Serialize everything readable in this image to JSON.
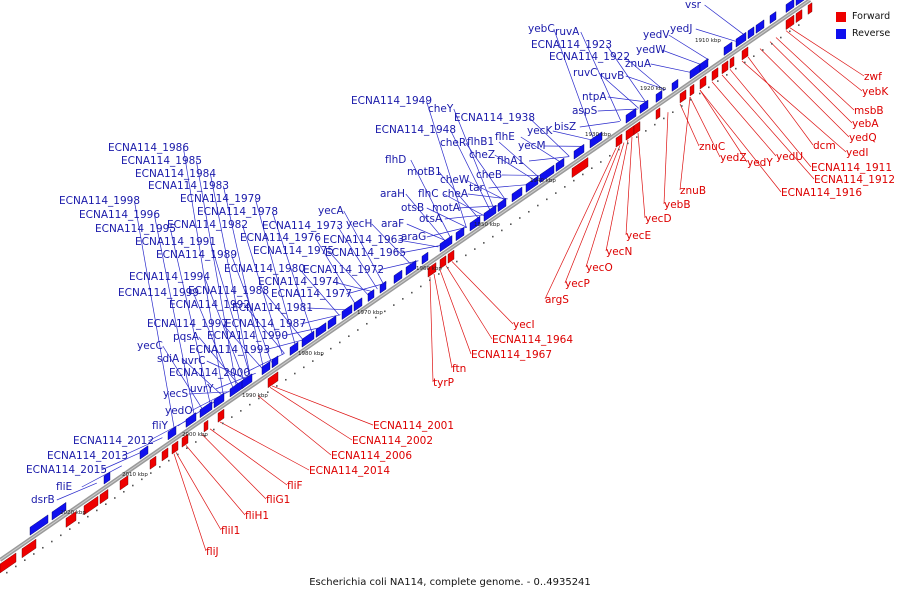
{
  "legend": [
    {
      "label": "Forward",
      "color": "#ee0000"
    },
    {
      "label": "Reverse",
      "color": "#1010ee"
    }
  ],
  "caption": "Escherichia coli NA114, complete genome. - 0..4935241",
  "colors": {
    "forward": "#ee0000",
    "reverse": "#1010ee",
    "backbone": "#888888"
  },
  "scale_ticks": [
    "1910 kbp",
    "1920 kbp",
    "1930 kbp",
    "1940 kbp",
    "1950 kbp",
    "1960 kbp",
    "1970 kbp",
    "1980 kbp",
    "1990 kbp",
    "2000 kbp",
    "2010 kbp",
    "2020 kbp"
  ],
  "reverse_genes": [
    "vsr",
    "yedJ",
    "yebC",
    "ruvA",
    "yedV",
    "ECNA114_1923",
    "yedW",
    "ECNA114_1922",
    "znuA",
    "ruvC",
    "ruvB",
    "ntpA",
    "ECNA114_1949",
    "aspS",
    "cheY",
    "ECNA114_1938",
    "bisZ",
    "ECNA114_1948",
    "cheR",
    "flhB1",
    "flhE",
    "yecK",
    "yecM",
    "cheZ",
    "flhA1",
    "flhD",
    "cheB",
    "motB1",
    "cheW",
    "tar",
    "araH",
    "flhC",
    "cheA",
    "otsB",
    "motA",
    "yecA",
    "araF",
    "otsA",
    "yecH",
    "ECNA114_1973",
    "araG",
    "ECNA114_1963",
    "ECNA114_1976",
    "ECNA114_1975",
    "ECNA114_1965",
    "ECNA114_1980",
    "ECNA114_1972",
    "ECNA114_1974",
    "ECNA114_1977",
    "ECNA114_1981",
    "ECNA114_1986",
    "ECNA114_1985",
    "ECNA114_1984",
    "ECNA114_1983",
    "ECNA114_1979",
    "ECNA114_1978",
    "ECNA114_1982",
    "ECNA114_1998",
    "ECNA114_1996",
    "ECNA114_1995",
    "ECNA114_1991",
    "ECNA114_1989",
    "ECNA114_1994",
    "ECNA114_1988",
    "ECNA114_1999",
    "ECNA114_1992",
    "ECNA114_1997",
    "ECNA114_1987",
    "ECNA114_1990",
    "pqsA",
    "yecC",
    "ECNA114_1993",
    "sdiA",
    "uvrC",
    "ECNA114_2000",
    "uvrY",
    "yecS",
    "yedO",
    "fliY",
    "ECNA114_2012",
    "ECNA114_2013",
    "ECNA114_2015",
    "fliE",
    "dsrB"
  ],
  "forward_genes_right": [
    "zwf",
    "yebK",
    "msbB",
    "yebA",
    "yedQ",
    "dcm",
    "yedI",
    "ECNA114_1911",
    "ECNA114_1912",
    "yedU",
    "ECNA114_1916",
    "yedY",
    "yedZ",
    "znuC",
    "znuB",
    "yebB"
  ],
  "forward_genes_middle": [
    "yecD",
    "yecE",
    "yecN",
    "yecO",
    "yecP",
    "argS",
    "yecI",
    "ECNA114_1964",
    "ECNA114_1967",
    "ftn",
    "tyrP"
  ],
  "forward_genes_lower": [
    "ECNA114_2001",
    "ECNA114_2002",
    "ECNA114_2006",
    "ECNA114_2014",
    "fliF",
    "fliG1",
    "fliH1",
    "fliI1",
    "fliJ"
  ]
}
